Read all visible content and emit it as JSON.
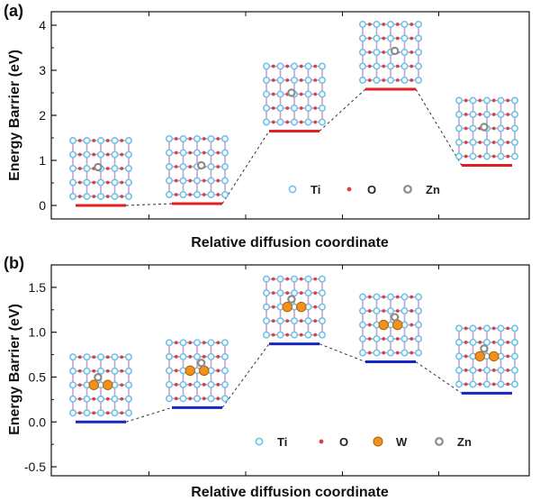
{
  "colors": {
    "ti": "#6fc3e8",
    "o": "#d94040",
    "zn": "#8c8c8c",
    "w": "#f0931e",
    "red_level": "#e11f1f",
    "blue_level": "#1726c8",
    "bond": "#c9a0c8"
  },
  "chart_data": [
    {
      "id": "a",
      "panel_label": "(a)",
      "type": "line",
      "series": [
        {
          "values": [
            0.0,
            0.04,
            1.65,
            2.58,
            0.89
          ],
          "color": "#e11f1f"
        }
      ],
      "x": [
        1,
        2,
        3,
        4,
        5
      ],
      "ylabel": "Energy Barrier (eV)",
      "xlabel": "Relative diffusion coordinate",
      "ylim": [
        -0.3,
        4.3
      ],
      "yticks": [
        0,
        1,
        2,
        3,
        4
      ],
      "ytick_labels": [
        "0",
        "1",
        "2",
        "3",
        "4"
      ],
      "legend": [
        {
          "label": "Ti",
          "symbol": "ti"
        },
        {
          "label": "O",
          "symbol": "o"
        },
        {
          "label": "Zn",
          "symbol": "zn"
        }
      ],
      "legend_position": "bottom-center",
      "structure_insets": [
        {
          "w_atoms": 0
        },
        {
          "w_atoms": 0
        },
        {
          "w_atoms": 0
        },
        {
          "w_atoms": 0
        },
        {
          "w_atoms": 0
        }
      ]
    },
    {
      "id": "b",
      "panel_label": "(b)",
      "type": "line",
      "series": [
        {
          "values": [
            0.0,
            0.16,
            0.87,
            0.67,
            0.32
          ],
          "color": "#1726c8"
        }
      ],
      "x": [
        1,
        2,
        3,
        4,
        5
      ],
      "ylabel": "Energy Barrier (eV)",
      "xlabel": "Relative diffusion coordinate",
      "ylim": [
        -0.6,
        1.75
      ],
      "yticks": [
        -0.5,
        0.0,
        0.5,
        1.0,
        1.5
      ],
      "ytick_labels": [
        "-0.5",
        "0.0",
        "0.5",
        "1.0",
        "1.5"
      ],
      "legend": [
        {
          "label": "Ti",
          "symbol": "ti"
        },
        {
          "label": "O",
          "symbol": "o"
        },
        {
          "label": "W",
          "symbol": "w"
        },
        {
          "label": "Zn",
          "symbol": "zn"
        }
      ],
      "legend_position": "bottom-center",
      "structure_insets": [
        {
          "w_atoms": 2
        },
        {
          "w_atoms": 2
        },
        {
          "w_atoms": 2
        },
        {
          "w_atoms": 2
        },
        {
          "w_atoms": 2
        }
      ]
    }
  ]
}
